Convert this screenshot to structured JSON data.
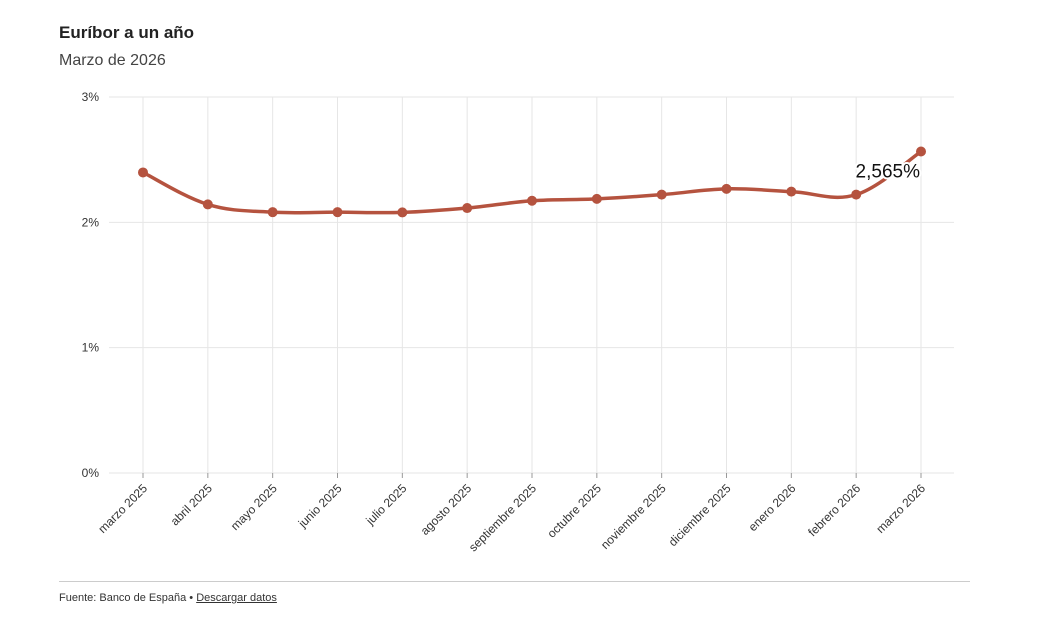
{
  "header": {
    "title": "Euríbor a un año",
    "subtitle": "Marzo de 2026"
  },
  "colors": {
    "series": "#b5533f",
    "grid": "#e6e6e6",
    "text": "#333333"
  },
  "chart_data": {
    "type": "line",
    "title": "Euríbor a un año",
    "subtitle": "Marzo de 2026",
    "xlabel": "",
    "ylabel": "",
    "categories": [
      "marzo 2025",
      "abril 2025",
      "mayo 2025",
      "junio 2025",
      "julio 2025",
      "agosto 2025",
      "septiembre 2025",
      "octubre 2025",
      "noviembre 2025",
      "diciembre 2025",
      "enero 2026",
      "febrero 2026",
      "marzo 2026"
    ],
    "series": [
      {
        "values": [
          2.398,
          2.143,
          2.081,
          2.081,
          2.079,
          2.114,
          2.172,
          2.187,
          2.221,
          2.267,
          2.245,
          2.221,
          2.565
        ]
      }
    ],
    "ylim": [
      0,
      3
    ],
    "yticks": [
      0,
      1,
      2,
      3
    ],
    "ytick_labels": [
      "0%",
      "1%",
      "2%",
      "3%"
    ],
    "grid": true,
    "annotation": {
      "index": 12,
      "text": "2,565%"
    },
    "legend": "none"
  },
  "footer": {
    "source_label": "Fuente: Banco de España •",
    "download_link": "Descargar datos"
  }
}
